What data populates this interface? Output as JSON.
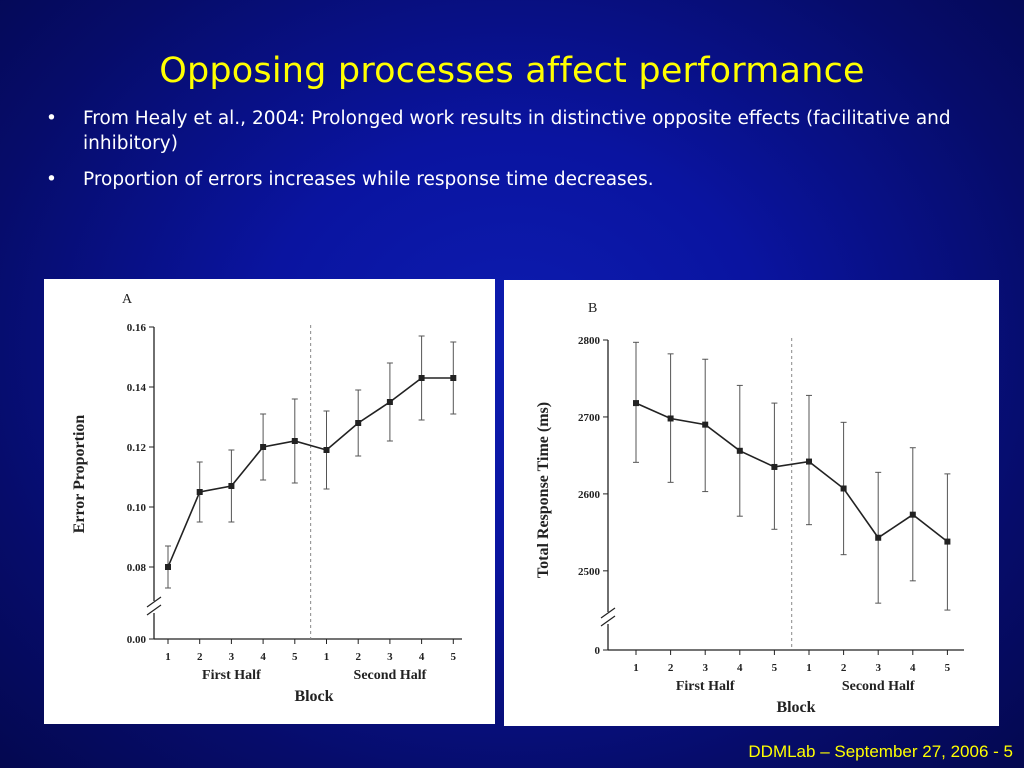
{
  "slide": {
    "title": "Opposing processes affect performance",
    "bullet_glyph": "•",
    "bullets": [
      "From Healy et al., 2004:  Prolonged work results in distinctive opposite effects (facilitative and inhibitory)",
      "Proportion of errors increases while response time decreases."
    ],
    "footer": "DDMLab – September 27, 2006 - 5"
  },
  "colors": {
    "title": "#ffff00",
    "text": "#ffffff",
    "background": "#0a14a0",
    "panel": "#ffffff",
    "ink": "#222222"
  },
  "chart_data": [
    {
      "type": "line",
      "panel_label": "A",
      "xlabel": "Block",
      "ylabel": "Error Proportion",
      "categories": [
        "1",
        "2",
        "3",
        "4",
        "5",
        "1",
        "2",
        "3",
        "4",
        "5"
      ],
      "group_labels": [
        "First Half",
        "Second Half"
      ],
      "y_ticks": [
        "0.00",
        "0.08",
        "0.10",
        "0.12",
        "0.14",
        "0.16"
      ],
      "y_break": true,
      "ylim": [
        0.075,
        0.16
      ],
      "values": [
        0.08,
        0.105,
        0.107,
        0.12,
        0.122,
        0.119,
        0.128,
        0.135,
        0.143,
        0.143
      ],
      "error_low": [
        0.073,
        0.095,
        0.095,
        0.109,
        0.108,
        0.106,
        0.117,
        0.122,
        0.129,
        0.131
      ],
      "error_high": [
        0.087,
        0.115,
        0.119,
        0.131,
        0.136,
        0.132,
        0.139,
        0.148,
        0.157,
        0.155
      ],
      "divider_after_index": 4,
      "grid": false
    },
    {
      "type": "line",
      "panel_label": "B",
      "xlabel": "Block",
      "ylabel": "Total Response Time (ms)",
      "categories": [
        "1",
        "2",
        "3",
        "4",
        "5",
        "1",
        "2",
        "3",
        "4",
        "5"
      ],
      "group_labels": [
        "First Half",
        "Second Half"
      ],
      "y_ticks": [
        "0",
        "2500",
        "2600",
        "2700",
        "2800"
      ],
      "y_break": true,
      "ylim": [
        2440,
        2800
      ],
      "values": [
        2718,
        2698,
        2690,
        2656,
        2635,
        2642,
        2607,
        2543,
        2573,
        2538
      ],
      "error_low": [
        2641,
        2615,
        2603,
        2571,
        2554,
        2560,
        2521,
        2458,
        2487,
        2449
      ],
      "error_high": [
        2797,
        2782,
        2775,
        2741,
        2718,
        2728,
        2693,
        2628,
        2660,
        2626
      ],
      "divider_after_index": 4,
      "grid": false
    }
  ]
}
